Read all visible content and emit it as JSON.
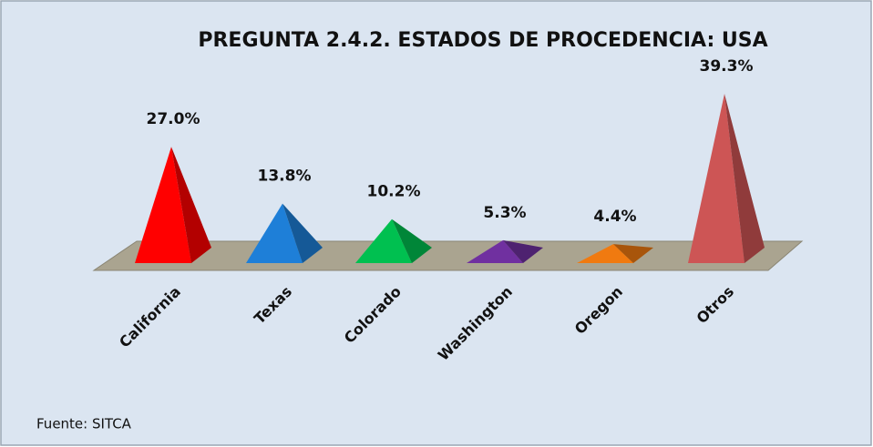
{
  "chart_data": {
    "type": "pyramid",
    "title": "PREGUNTA 2.4.2. ESTADOS DE PROCEDENCIA: USA",
    "categories": [
      "California",
      "Texas",
      "Colorado",
      "Washington",
      "Oregon",
      "Otros"
    ],
    "values": [
      27.0,
      13.8,
      10.2,
      5.3,
      4.4,
      39.3
    ],
    "value_labels": [
      "27.0%",
      "13.8%",
      "10.2%",
      "5.3%",
      "4.4%",
      "39.3%"
    ],
    "colors": [
      "#ff0000",
      "#1e7fd8",
      "#00c050",
      "#7030a0",
      "#f07a10",
      "#cd5555"
    ],
    "source": "Fuente: SITCA"
  }
}
